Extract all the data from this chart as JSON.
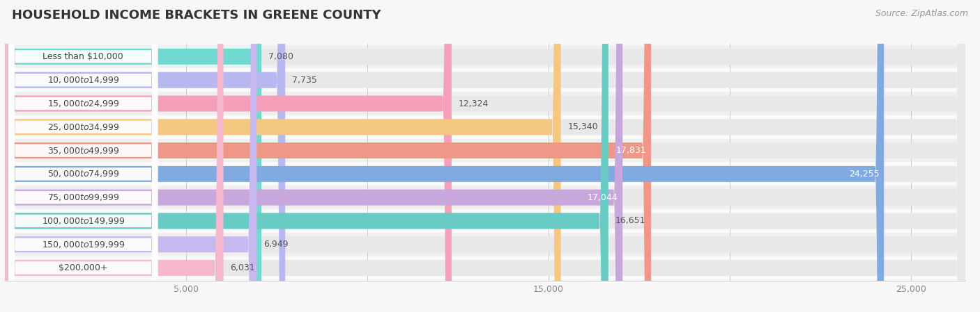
{
  "title": "HOUSEHOLD INCOME BRACKETS IN GREENE COUNTY",
  "source": "Source: ZipAtlas.com",
  "categories": [
    "Less than $10,000",
    "$10,000 to $14,999",
    "$15,000 to $24,999",
    "$25,000 to $34,999",
    "$35,000 to $49,999",
    "$50,000 to $74,999",
    "$75,000 to $99,999",
    "$100,000 to $149,999",
    "$150,000 to $199,999",
    "$200,000+"
  ],
  "values": [
    7080,
    7735,
    12324,
    15340,
    17831,
    24255,
    17044,
    16651,
    6949,
    6031
  ],
  "bar_colors": [
    "#72d8d2",
    "#b8b8f0",
    "#f5a0b8",
    "#f5c882",
    "#f09888",
    "#80aae0",
    "#c8a8dc",
    "#68ccc4",
    "#c8b8f0",
    "#f5b8cc"
  ],
  "row_bg_colors": [
    "#f0f0f0",
    "#fafafa",
    "#f0f0f0",
    "#fafafa",
    "#f0f0f0",
    "#fafafa",
    "#f0f0f0",
    "#fafafa",
    "#f0f0f0",
    "#fafafa"
  ],
  "value_label_inside": [
    false,
    false,
    false,
    false,
    true,
    true,
    true,
    false,
    false,
    false
  ],
  "xlim": [
    0,
    26500
  ],
  "xticks": [
    0,
    5000,
    10000,
    15000,
    20000,
    25000
  ],
  "xtick_labels": [
    "",
    "5,000",
    "",
    "15,000",
    "",
    "25,000"
  ],
  "background_color": "#f7f7f7",
  "bar_bg_color": "#e8e8e8",
  "title_fontsize": 13,
  "source_fontsize": 9,
  "label_fontsize": 9,
  "value_fontsize": 9
}
